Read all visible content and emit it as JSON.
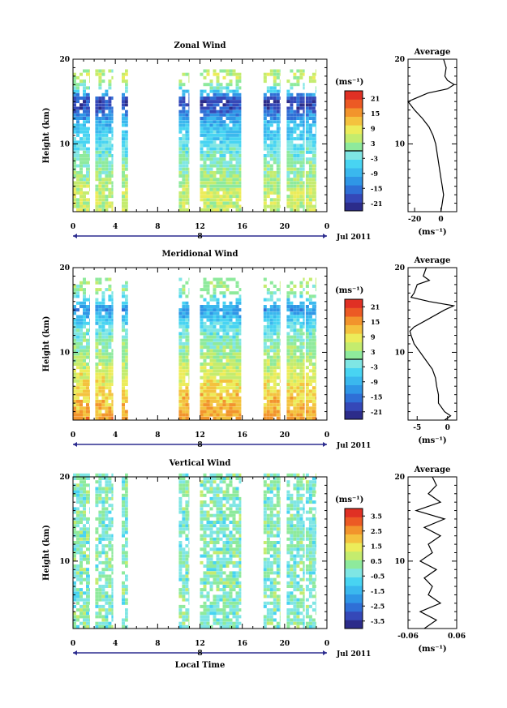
{
  "colors": {
    "axis": "#000000",
    "date_line": "#2d2d8f",
    "colormap": [
      "#2c2c8a",
      "#3548b8",
      "#2f6fd6",
      "#2f96e6",
      "#3ab8ee",
      "#48d4f2",
      "#7fe6e4",
      "#8eea9c",
      "#c4ec6e",
      "#ecec5a",
      "#f4c23e",
      "#f2942c",
      "#ec5a24",
      "#e03024"
    ]
  },
  "x_axis": {
    "ticks": [
      "0",
      "4",
      "8",
      "12",
      "16",
      "20",
      "0"
    ],
    "day_label": "8",
    "month_label": "Jul 2011",
    "label": "Local Time"
  },
  "chart_data": [
    {
      "type": "heatmap",
      "title": "Zonal Wind",
      "ylabel": "Height (km)",
      "yticks": [
        "20",
        "10"
      ],
      "xlim": [
        0,
        24
      ],
      "ylim": [
        2,
        20
      ],
      "colorbar": {
        "unit": "(ms⁻¹)",
        "ticks": [
          "21",
          "15",
          "9",
          "3",
          "-3",
          "-9",
          "-15",
          "-21"
        ],
        "range": [
          -24,
          24
        ]
      },
      "data_columns_hours": [
        [
          0,
          1.6
        ],
        [
          2.1,
          3.8
        ],
        [
          4.6,
          5.2
        ],
        [
          10.0,
          11.0
        ],
        [
          12.0,
          15.9
        ],
        [
          18.0,
          19.6
        ],
        [
          20.2,
          21.9
        ],
        [
          22.0,
          23.0
        ]
      ],
      "profile_by_height": {
        "height_km": [
          2,
          4,
          6,
          8,
          10,
          12,
          13,
          14,
          15,
          16,
          17,
          18,
          19,
          20
        ],
        "value": [
          5,
          6,
          2,
          0,
          -4,
          -8,
          -12,
          -18,
          -20,
          -6,
          3,
          5,
          0,
          0
        ]
      },
      "average": {
        "title": "Average",
        "xlabel": "(ms⁻¹)",
        "xticks": [
          "-20",
          "0"
        ],
        "yticks": [
          "20",
          "10"
        ],
        "xlim": [
          -25,
          12
        ],
        "height_km": [
          2,
          3,
          4,
          5,
          6,
          7,
          8,
          9,
          10,
          11,
          12,
          13,
          14,
          15,
          16,
          16.5,
          17,
          17.5,
          18,
          19,
          20
        ],
        "value": [
          0,
          1,
          2,
          1,
          0,
          -1,
          -2,
          -3,
          -4,
          -6,
          -9,
          -14,
          -20,
          -25,
          -10,
          5,
          10,
          5,
          3,
          4,
          2
        ]
      }
    },
    {
      "type": "heatmap",
      "title": "Meridional Wind",
      "ylabel": "Height (km)",
      "yticks": [
        "20",
        "10"
      ],
      "xlim": [
        0,
        24
      ],
      "ylim": [
        2,
        20
      ],
      "colorbar": {
        "unit": "(ms⁻¹)",
        "ticks": [
          "21",
          "15",
          "9",
          "3",
          "-3",
          "-9",
          "-15",
          "-21"
        ],
        "range": [
          -24,
          24
        ]
      },
      "data_columns_hours": [
        [
          0,
          1.6
        ],
        [
          2.1,
          3.8
        ],
        [
          4.6,
          5.2
        ],
        [
          10.0,
          11.0
        ],
        [
          12.0,
          15.9
        ],
        [
          18.0,
          19.6
        ],
        [
          20.2,
          21.9
        ],
        [
          22.0,
          23.0
        ]
      ],
      "profile_by_height": {
        "height_km": [
          2,
          4,
          6,
          8,
          10,
          12,
          13,
          14,
          15,
          16,
          17,
          18,
          19,
          20
        ],
        "value": [
          14,
          12,
          9,
          6,
          2,
          -1,
          -4,
          -8,
          -12,
          -4,
          2,
          3,
          0,
          0
        ]
      },
      "average": {
        "title": "Average",
        "xlabel": "(ms⁻¹)",
        "xticks": [
          "-5",
          "0"
        ],
        "yticks": [
          "20",
          "10"
        ],
        "xlim": [
          -6.5,
          1.5
        ],
        "height_km": [
          2,
          2.5,
          3,
          3.5,
          4,
          5,
          6,
          7,
          8,
          9,
          10,
          11,
          12,
          12.5,
          13,
          14,
          15,
          15.5,
          16,
          16.5,
          17,
          18,
          18.5,
          19,
          20
        ],
        "value": [
          -0.5,
          0.5,
          -0.5,
          -1,
          -1.5,
          -1.5,
          -1.8,
          -2,
          -2.5,
          -3.5,
          -4.5,
          -5.5,
          -6,
          -6.2,
          -5.5,
          -3,
          -0.5,
          1,
          -3,
          -6,
          -5.5,
          -5,
          -3,
          -4,
          -3.5
        ]
      }
    },
    {
      "type": "heatmap",
      "title": "Vertical Wind",
      "ylabel": "Height (km)",
      "yticks": [
        "20",
        "10"
      ],
      "xlim": [
        0,
        24
      ],
      "ylim": [
        2,
        20
      ],
      "colorbar": {
        "unit": "(ms⁻¹)",
        "ticks": [
          "3.5",
          "2.5",
          "1.5",
          "0.5",
          "-0.5",
          "-1.5",
          "-2.5",
          "-3.5"
        ],
        "range": [
          -4,
          4
        ]
      },
      "data_columns_hours": [
        [
          0,
          1.6
        ],
        [
          2.1,
          3.8
        ],
        [
          4.6,
          5.2
        ],
        [
          10.0,
          11.0
        ],
        [
          12.0,
          15.9
        ],
        [
          18.0,
          19.6
        ],
        [
          20.2,
          21.9
        ],
        [
          22.0,
          23.0
        ]
      ],
      "profile_by_height": {
        "height_km": [
          2,
          20
        ],
        "value": [
          0,
          0
        ]
      },
      "average": {
        "title": "Average",
        "xlabel": "(ms⁻¹)",
        "xticks": [
          "-0.06",
          "0.06"
        ],
        "yticks": [
          "20",
          "10"
        ],
        "xlim": [
          -0.06,
          0.06
        ],
        "height_km": [
          2,
          3,
          4,
          5,
          6,
          7,
          8,
          9,
          10,
          11,
          12,
          13,
          14,
          15,
          16,
          17,
          18,
          19,
          20
        ],
        "value": [
          -0.02,
          0.01,
          -0.03,
          0.02,
          -0.01,
          0.0,
          -0.02,
          0.01,
          -0.03,
          0.0,
          -0.01,
          0.02,
          -0.02,
          0.03,
          -0.04,
          0.02,
          -0.01,
          0.01,
          0.0
        ]
      }
    }
  ]
}
